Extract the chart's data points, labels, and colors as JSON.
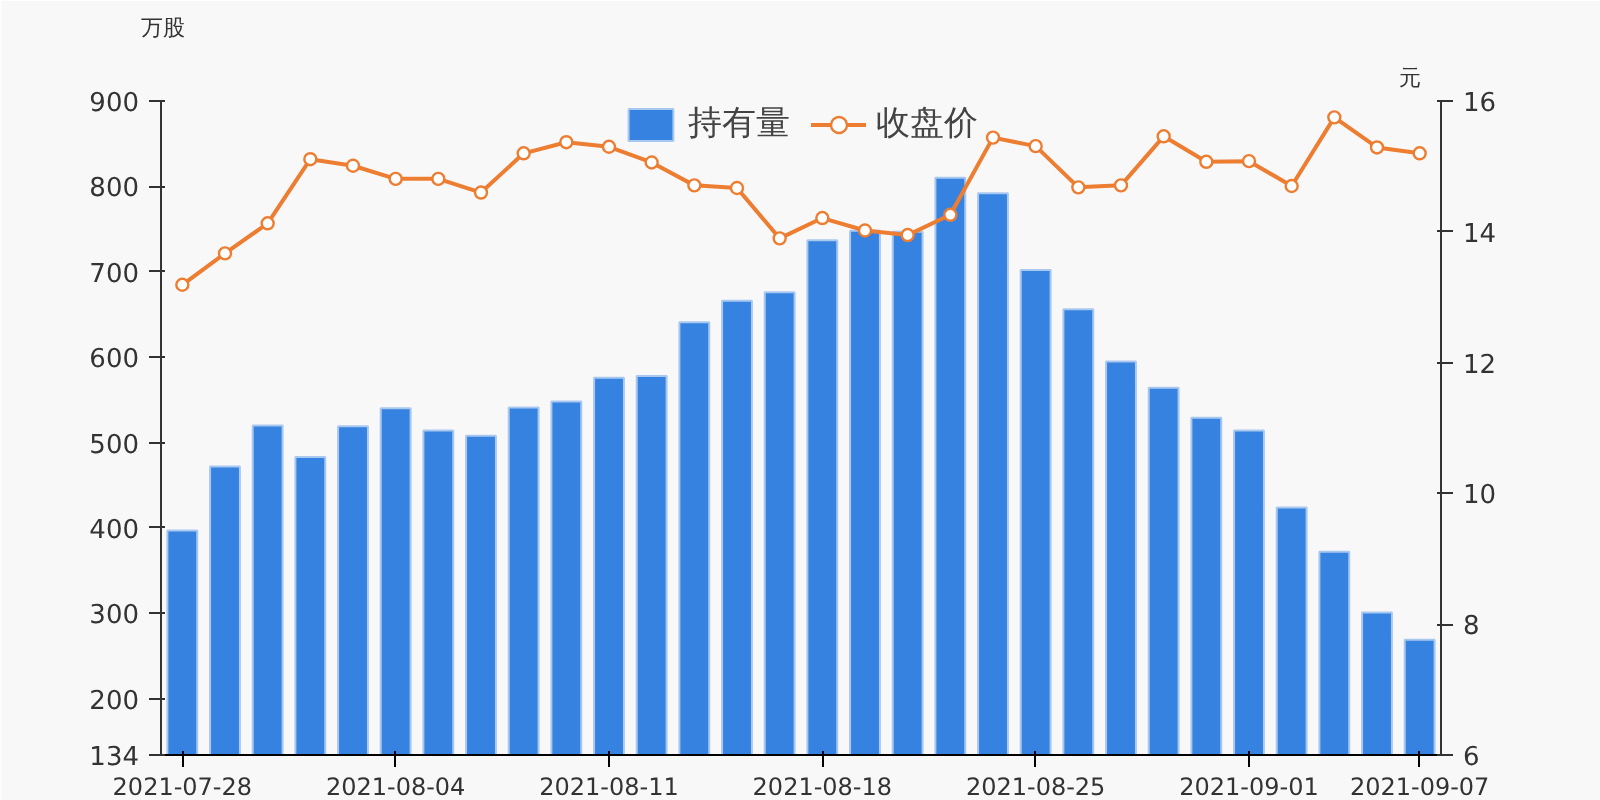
{
  "chart_data": {
    "type": "bar",
    "categories": [
      "2021-07-28",
      null,
      null,
      null,
      null,
      "2021-08-04",
      null,
      null,
      null,
      null,
      "2021-08-11",
      null,
      null,
      null,
      null,
      "2021-08-18",
      null,
      null,
      null,
      null,
      "2021-08-25",
      null,
      null,
      null,
      null,
      "2021-09-01",
      null,
      null,
      null,
      "2021-09-07"
    ],
    "series": [
      {
        "name": "持有量",
        "color": "#3682e1",
        "values": [
          397,
          472,
          520,
          483,
          519,
          540,
          514,
          508,
          541,
          548,
          576,
          578,
          641,
          666,
          676,
          737,
          748,
          747,
          810,
          792,
          702,
          656,
          595,
          564,
          529,
          514,
          424,
          372,
          301,
          269
        ]
      },
      {
        "name": "收盘价",
        "type": "line",
        "axis": "y2",
        "color": "#ed7d31",
        "values": [
          13.19,
          13.67,
          14.13,
          15.11,
          15.01,
          14.81,
          14.81,
          14.6,
          15.2,
          15.37,
          15.3,
          15.06,
          14.71,
          14.67,
          13.9,
          14.21,
          14.02,
          13.95,
          14.26,
          15.44,
          15.31,
          14.68,
          14.71,
          15.46,
          15.07,
          15.08,
          14.7,
          15.75,
          15.29,
          15.2
        ]
      }
    ],
    "ylabel": "万股",
    "y2label": "元",
    "ylim": [
      134,
      900
    ],
    "yticks": [
      134,
      200,
      300,
      400,
      500,
      600,
      700,
      800,
      900
    ],
    "y2lim": [
      6,
      16
    ],
    "y2ticks": [
      6,
      8,
      10,
      12,
      14,
      16
    ],
    "grid": false,
    "legend": "top",
    "marker": "circle",
    "line_style": "solid"
  }
}
